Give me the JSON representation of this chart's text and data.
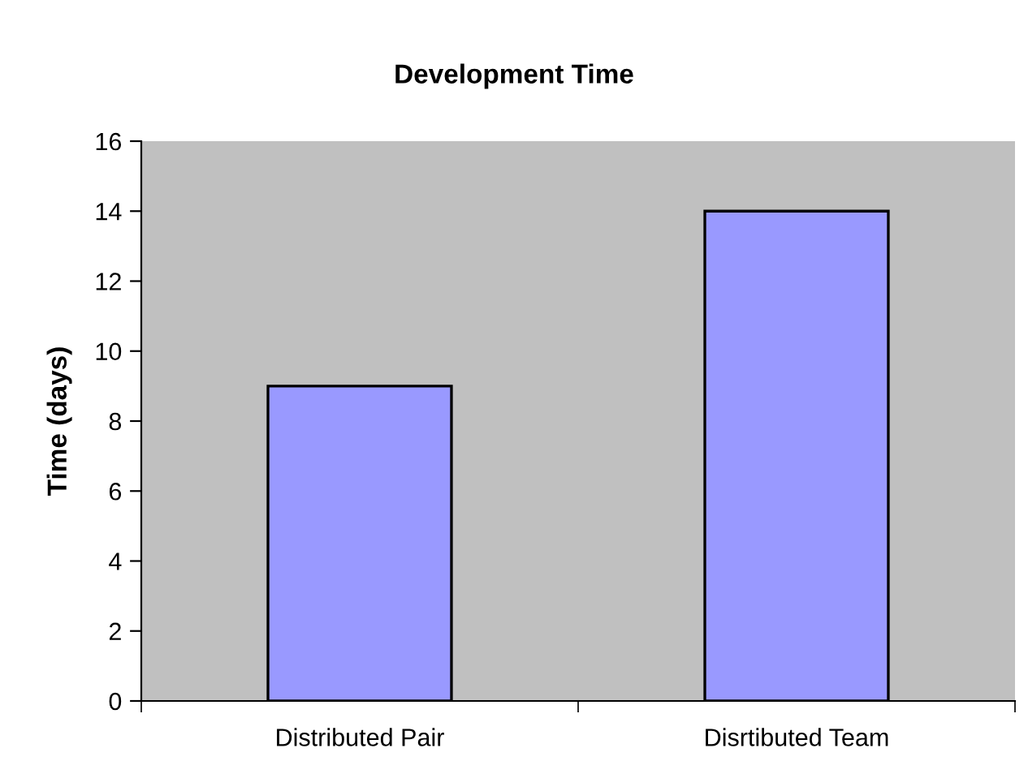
{
  "chart_data": {
    "type": "bar",
    "title": "Development Time",
    "ylabel": "Time (days)",
    "categories": [
      "Distributed Pair",
      "Disrtibuted Team"
    ],
    "values": [
      9,
      14
    ],
    "color": "#9999ff",
    "ylim": [
      0,
      16
    ],
    "yticks": [
      0,
      2,
      4,
      6,
      8,
      10,
      12,
      14,
      16
    ],
    "grid": false,
    "legend": false
  }
}
